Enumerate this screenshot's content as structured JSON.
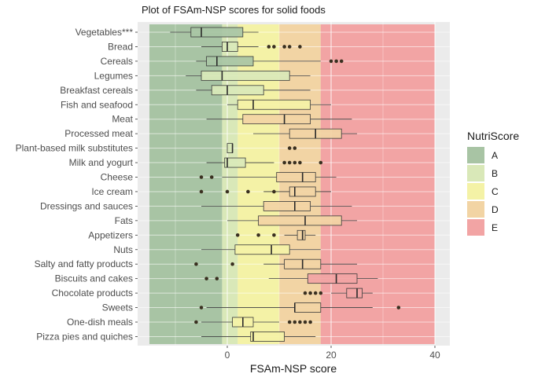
{
  "chart_data": {
    "type": "boxplot",
    "title": "Plot of FSAm-NSP scores for solid foods",
    "xlabel": "FSAm-NSP score",
    "ylabel": "",
    "xlim": [
      -16.5,
      42
    ],
    "x_ticks": [
      0,
      20,
      40
    ],
    "x_tick_labels": [
      "0",
      "20",
      "40"
    ],
    "grid": true,
    "legend": {
      "title": "NutriScore",
      "position": "right",
      "entries": [
        {
          "label": "A",
          "color": "#A8C4A4"
        },
        {
          "label": "B",
          "color": "#D9E8B8"
        },
        {
          "label": "C",
          "color": "#F4F2A6"
        },
        {
          "label": "D",
          "color": "#F2D4A4"
        },
        {
          "label": "E",
          "color": "#F2A4A4"
        }
      ]
    },
    "bands": [
      {
        "grade": "A",
        "from": -15,
        "to": -1,
        "color": "#A8C4A4"
      },
      {
        "grade": "B",
        "from": -1,
        "to": 2,
        "color": "#D9E8B8"
      },
      {
        "grade": "C",
        "from": 2,
        "to": 10,
        "color": "#F4F2A6"
      },
      {
        "grade": "D",
        "from": 10,
        "to": 18,
        "color": "#F2D4A4"
      },
      {
        "grade": "E",
        "from": 18,
        "to": 40,
        "color": "#F2A4A4"
      }
    ],
    "categories": [
      "Vegetables***",
      "Bread",
      "Cereals",
      "Legumes",
      "Breakfast cereals",
      "Fish and seafood",
      "Meat",
      "Processed meat",
      "Plant-based milk substitutes",
      "Milk and yogurt",
      "Cheese",
      "Ice cream",
      "Dressings and sauces",
      "Fats",
      "Appetizers",
      "Nuts",
      "Salty and fatty products",
      "Biscuits and cakes",
      "Chocolate products",
      "Sweets",
      "One-dish meals",
      "Pizza pies and quiches"
    ],
    "boxes": [
      {
        "category": "Vegetables***",
        "whisker_low": -11,
        "q1": -7,
        "median": -5,
        "q3": 3,
        "whisker_high": 6,
        "outliers": []
      },
      {
        "category": "Bread",
        "whisker_low": -5,
        "q1": -1,
        "median": 0,
        "q3": 2,
        "whisker_high": 6,
        "outliers": [
          8,
          9,
          11,
          12,
          14
        ]
      },
      {
        "category": "Cereals",
        "whisker_low": -6,
        "q1": -4,
        "median": -2,
        "q3": 5,
        "whisker_high": 18,
        "outliers": [
          20,
          21,
          22
        ]
      },
      {
        "category": "Legumes",
        "whisker_low": -8,
        "q1": -5,
        "median": -1,
        "q3": 12,
        "whisker_high": 16,
        "outliers": []
      },
      {
        "category": "Breakfast cereals",
        "whisker_low": -6,
        "q1": -3,
        "median": 0,
        "q3": 7,
        "whisker_high": 16,
        "outliers": []
      },
      {
        "category": "Fish and seafood",
        "whisker_low": 0,
        "q1": 2,
        "median": 5,
        "q3": 16,
        "whisker_high": 20,
        "outliers": []
      },
      {
        "category": "Meat",
        "whisker_low": -4,
        "q1": 3,
        "median": 11,
        "q3": 16,
        "whisker_high": 24,
        "outliers": []
      },
      {
        "category": "Processed meat",
        "whisker_low": 5,
        "q1": 12,
        "median": 17,
        "q3": 22,
        "whisker_high": 25,
        "outliers": []
      },
      {
        "category": "Plant-based milk substitutes",
        "whisker_low": 0,
        "q1": 0,
        "median": 1,
        "q3": 1,
        "whisker_high": 1,
        "outliers": [
          12,
          13
        ]
      },
      {
        "category": "Milk and yogurt",
        "whisker_low": -4,
        "q1": -0.5,
        "median": 0,
        "q3": 3.5,
        "whisker_high": 9,
        "outliers": [
          11,
          12,
          13,
          14,
          18
        ]
      },
      {
        "category": "Cheese",
        "whisker_low": -1,
        "q1": 9.5,
        "median": 14.5,
        "q3": 17,
        "whisker_high": 21,
        "outliers": [
          -5,
          -3
        ]
      },
      {
        "category": "Ice cream",
        "whisker_low": 7,
        "q1": 12,
        "median": 13,
        "q3": 17,
        "whisker_high": 20,
        "outliers": [
          -5,
          0,
          4,
          9
        ]
      },
      {
        "category": "Dressings and sauces",
        "whisker_low": -5,
        "q1": 7,
        "median": 13,
        "q3": 16,
        "whisker_high": 24,
        "outliers": []
      },
      {
        "category": "Fats",
        "whisker_low": 0,
        "q1": 6,
        "median": 15,
        "q3": 22,
        "whisker_high": 25,
        "outliers": []
      },
      {
        "category": "Appetizers",
        "whisker_low": 11,
        "q1": 13.5,
        "median": 14.5,
        "q3": 15,
        "whisker_high": 17,
        "outliers": [
          2,
          6,
          9
        ]
      },
      {
        "category": "Nuts",
        "whisker_low": -5,
        "q1": 1.5,
        "median": 8.5,
        "q3": 12,
        "whisker_high": 18,
        "outliers": []
      },
      {
        "category": "Salty and fatty products",
        "whisker_low": 7,
        "q1": 11,
        "median": 14.5,
        "q3": 18,
        "whisker_high": 25,
        "outliers": [
          -6,
          1
        ]
      },
      {
        "category": "Biscuits and cakes",
        "whisker_low": 8,
        "q1": 15.5,
        "median": 21,
        "q3": 25,
        "whisker_high": 29,
        "outliers": [
          -4,
          -2
        ]
      },
      {
        "category": "Chocolate products",
        "whisker_low": 20,
        "q1": 23,
        "median": 25,
        "q3": 26,
        "whisker_high": 28,
        "outliers": [
          15,
          16,
          17,
          18
        ]
      },
      {
        "category": "Sweets",
        "whisker_low": -4,
        "q1": 13,
        "median": 13,
        "q3": 18,
        "whisker_high": 28,
        "outliers": [
          -5,
          33
        ]
      },
      {
        "category": "One-dish meals",
        "whisker_low": -5,
        "q1": 1,
        "median": 3,
        "q3": 5,
        "whisker_high": 10,
        "outliers": [
          -6,
          12,
          13,
          14,
          15,
          16
        ]
      },
      {
        "category": "Pizza pies and quiches",
        "whisker_low": -5,
        "q1": 4.5,
        "median": 5,
        "q3": 11,
        "whisker_high": 17,
        "outliers": []
      }
    ]
  }
}
